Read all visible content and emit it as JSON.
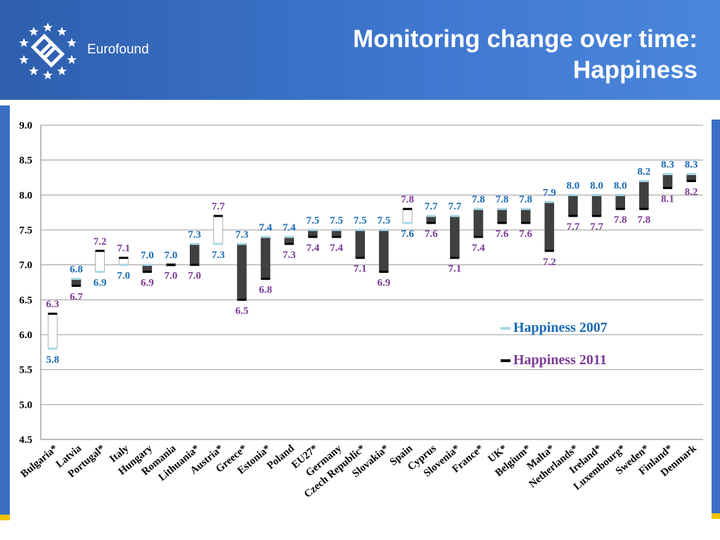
{
  "header": {
    "brand": "Eurofound",
    "title_line1": "Monitoring change over time:",
    "title_line2": "Happiness"
  },
  "colors": {
    "header": "#3a6fc4",
    "series_2007": "#1a6ab4",
    "series_2011": "#7b3a96",
    "marker_2007": "#a8d8e8",
    "marker_2011": "#000000",
    "bar_fill": "#404040"
  },
  "legend": {
    "happiness_2007": "Happiness 2007",
    "happiness_2011": "Happiness 2011"
  },
  "chart_data": {
    "type": "bar",
    "ylim": [
      4.5,
      9.0
    ],
    "yticks": [
      "4.5",
      "5.0",
      "5.5",
      "6.0",
      "6.5",
      "7.0",
      "7.5",
      "8.0",
      "8.5",
      "9.0"
    ],
    "grid": true,
    "legend_position": "bottom-right",
    "categories": [
      "Bulgaria*",
      "Latvia",
      "Portugal*",
      "Italy",
      "Hungary",
      "Romania",
      "Lithuania*",
      "Austria*",
      "Greece*",
      "Estonia*",
      "Poland",
      "EU27*",
      "Germany",
      "Czech Republic*",
      "Slovakia*",
      "Spain",
      "Cyprus",
      "Slovenia*",
      "France*",
      "UK*",
      "Belgium*",
      "Malta*",
      "Netherlands*",
      "Ireland*",
      "Luxembourg*",
      "Sweden*",
      "Finland*",
      "Denmark"
    ],
    "series": [
      {
        "name": "Happiness 2007",
        "values": [
          5.8,
          6.8,
          6.9,
          7.0,
          7.0,
          7.0,
          7.3,
          7.3,
          7.3,
          7.4,
          7.4,
          7.5,
          7.5,
          7.5,
          7.5,
          7.6,
          7.7,
          7.7,
          7.8,
          7.8,
          7.8,
          7.9,
          8.0,
          8.0,
          8.0,
          8.2,
          8.3,
          8.3
        ]
      },
      {
        "name": "Happiness 2011",
        "values": [
          6.3,
          6.7,
          7.2,
          7.1,
          6.9,
          7.0,
          7.0,
          7.7,
          6.5,
          6.8,
          7.3,
          7.4,
          7.4,
          7.1,
          6.9,
          7.8,
          7.6,
          7.1,
          7.4,
          7.6,
          7.6,
          7.2,
          7.7,
          7.7,
          7.8,
          7.8,
          8.1,
          8.2
        ]
      }
    ]
  }
}
